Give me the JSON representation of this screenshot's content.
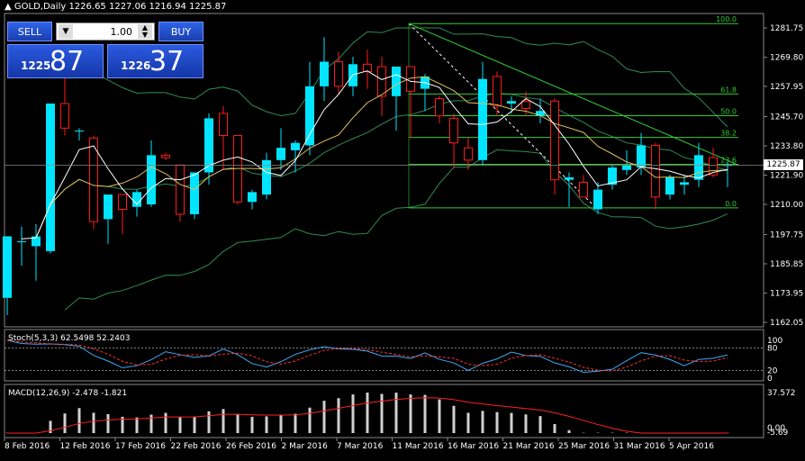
{
  "header": {
    "title": "GOLD,Daily  1226.65 1227.06 1216.94 1225.87"
  },
  "trade_panel": {
    "sell_label": "SELL",
    "buy_label": "BUY",
    "lot_value": "1.00",
    "sell_small": "1225",
    "sell_big": "87",
    "buy_small": "1226",
    "buy_big": "37"
  },
  "current_price": "1225.87",
  "price_axis": [
    "1281.75",
    "1269.80",
    "1257.95",
    "1245.70",
    "1233.80",
    "1221.90",
    "1210.00",
    "1197.75",
    "1185.85",
    "1173.95",
    "1162.05"
  ],
  "fibonacci": [
    "100.0",
    "61.8",
    "50.0",
    "38.2",
    "23.6",
    "0.0"
  ],
  "stoch": {
    "label": "Stoch(5,3,3) 62.5498 52.2403",
    "levels": [
      "100",
      "80",
      "20",
      "0"
    ]
  },
  "macd": {
    "label": "MACD(12,26,9) -2.478 -1.821",
    "levels": [
      "37.572",
      "0.00",
      "-5.69"
    ]
  },
  "date_axis": [
    "8 Feb 2016",
    "12 Feb 2016",
    "17 Feb 2016",
    "22 Feb 2016",
    "26 Feb 2016",
    "2 Mar 2016",
    "7 Mar 2016",
    "11 Mar 2016",
    "16 Mar 2016",
    "21 Mar 2016",
    "25 Mar 2016",
    "31 Mar 2016",
    "5 Apr 2016"
  ],
  "colors": {
    "bull": "#00e5ff",
    "bear": "#ff1a1a",
    "fib": "#33cc33",
    "bands": "#2e8b57",
    "ma_fast": "#ffffff",
    "ma_slow": "#e0c060"
  },
  "chart_data": {
    "type": "candlestick",
    "ylim": [
      1162.05,
      1281.75
    ],
    "candles": [
      {
        "o": 1172,
        "h": 1197,
        "l": 1165,
        "c": 1197
      },
      {
        "o": 1195,
        "h": 1201,
        "l": 1185,
        "c": 1195
      },
      {
        "o": 1193,
        "h": 1202,
        "l": 1179,
        "c": 1197
      },
      {
        "o": 1191,
        "h": 1250,
        "l": 1190,
        "c": 1251
      },
      {
        "o": 1251,
        "h": 1262,
        "l": 1238,
        "c": 1241
      },
      {
        "o": 1240,
        "h": 1241,
        "l": 1236,
        "c": 1240
      },
      {
        "o": 1237,
        "h": 1238,
        "l": 1200,
        "c": 1203
      },
      {
        "o": 1204,
        "h": 1213,
        "l": 1194,
        "c": 1214
      },
      {
        "o": 1214,
        "h": 1214,
        "l": 1198,
        "c": 1208
      },
      {
        "o": 1209,
        "h": 1216,
        "l": 1205,
        "c": 1215
      },
      {
        "o": 1210,
        "h": 1236,
        "l": 1209,
        "c": 1230
      },
      {
        "o": 1230,
        "h": 1231,
        "l": 1228,
        "c": 1229
      },
      {
        "o": 1226,
        "h": 1226,
        "l": 1203,
        "c": 1206
      },
      {
        "o": 1206,
        "h": 1222,
        "l": 1204,
        "c": 1223
      },
      {
        "o": 1223,
        "h": 1247,
        "l": 1218,
        "c": 1245
      },
      {
        "o": 1247,
        "h": 1250,
        "l": 1224,
        "c": 1238
      },
      {
        "o": 1238,
        "h": 1238,
        "l": 1210,
        "c": 1211
      },
      {
        "o": 1211,
        "h": 1216,
        "l": 1208,
        "c": 1215
      },
      {
        "o": 1214,
        "h": 1231,
        "l": 1212,
        "c": 1228
      },
      {
        "o": 1228,
        "h": 1241,
        "l": 1224,
        "c": 1233
      },
      {
        "o": 1232,
        "h": 1236,
        "l": 1223,
        "c": 1235
      },
      {
        "o": 1234,
        "h": 1268,
        "l": 1230,
        "c": 1258
      },
      {
        "o": 1258,
        "h": 1278,
        "l": 1252,
        "c": 1268
      },
      {
        "o": 1268,
        "h": 1272,
        "l": 1255,
        "c": 1258
      },
      {
        "o": 1258,
        "h": 1270,
        "l": 1254,
        "c": 1267
      },
      {
        "o": 1267,
        "h": 1273,
        "l": 1257,
        "c": 1264
      },
      {
        "o": 1266,
        "h": 1270,
        "l": 1246,
        "c": 1254
      },
      {
        "o": 1254,
        "h": 1266,
        "l": 1240,
        "c": 1266
      },
      {
        "o": 1266,
        "h": 1266,
        "l": 1237,
        "c": 1256
      },
      {
        "o": 1257,
        "h": 1263,
        "l": 1248,
        "c": 1262
      },
      {
        "o": 1253,
        "h": 1254,
        "l": 1243,
        "c": 1246
      },
      {
        "o": 1245,
        "h": 1247,
        "l": 1225,
        "c": 1235
      },
      {
        "o": 1233,
        "h": 1237,
        "l": 1224,
        "c": 1228
      },
      {
        "o": 1228,
        "h": 1268,
        "l": 1226,
        "c": 1261
      },
      {
        "o": 1262,
        "h": 1264,
        "l": 1246,
        "c": 1250
      },
      {
        "o": 1251,
        "h": 1254,
        "l": 1247,
        "c": 1252
      },
      {
        "o": 1252,
        "h": 1256,
        "l": 1246,
        "c": 1249
      },
      {
        "o": 1246,
        "h": 1253,
        "l": 1243,
        "c": 1248
      },
      {
        "o": 1252,
        "h": 1253,
        "l": 1214,
        "c": 1220
      },
      {
        "o": 1220,
        "h": 1223,
        "l": 1209,
        "c": 1221
      },
      {
        "o": 1219,
        "h": 1222,
        "l": 1213,
        "c": 1213
      },
      {
        "o": 1208,
        "h": 1219,
        "l": 1206,
        "c": 1216
      },
      {
        "o": 1218,
        "h": 1226,
        "l": 1216,
        "c": 1225
      },
      {
        "o": 1224,
        "h": 1232,
        "l": 1222,
        "c": 1226
      },
      {
        "o": 1225,
        "h": 1239,
        "l": 1222,
        "c": 1234
      },
      {
        "o": 1234,
        "h": 1235,
        "l": 1208,
        "c": 1213
      },
      {
        "o": 1214,
        "h": 1222,
        "l": 1212,
        "c": 1221
      },
      {
        "o": 1218,
        "h": 1222,
        "l": 1214,
        "c": 1219
      },
      {
        "o": 1220,
        "h": 1235,
        "l": 1217,
        "c": 1230
      },
      {
        "o": 1229,
        "h": 1233,
        "l": 1221,
        "c": 1222
      },
      {
        "o": 1226,
        "h": 1227,
        "l": 1217,
        "c": 1226
      }
    ]
  }
}
